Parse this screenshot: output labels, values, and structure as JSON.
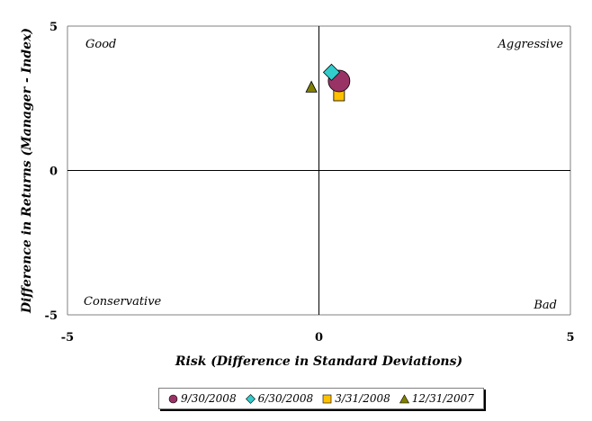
{
  "chart_data": {
    "type": "scatter",
    "title": "",
    "xlabel": "Risk (Difference in Standard Deviations)",
    "ylabel": "Difference in Returns (Manager - Index)",
    "xlim": [
      -5,
      5
    ],
    "ylim": [
      -5,
      5
    ],
    "x_ticks": [
      "-5",
      "0",
      "5"
    ],
    "y_ticks": [
      "5",
      "0",
      "-5"
    ],
    "grid": false,
    "legend_position": "bottom",
    "quadrant_labels": {
      "top_left": "Good",
      "top_right": "Aggressive",
      "bottom_left": "Conservative",
      "bottom_right": "Bad"
    },
    "series": [
      {
        "name": "9/30/2008",
        "marker": "circle",
        "color": "#993366",
        "points": [
          {
            "x": 0.4,
            "y": 3.1
          }
        ]
      },
      {
        "name": "6/30/2008",
        "marker": "diamond",
        "color": "#33CCCC",
        "points": [
          {
            "x": 0.25,
            "y": 3.4
          }
        ]
      },
      {
        "name": "3/31/2008",
        "marker": "square",
        "color": "#FFC000",
        "points": [
          {
            "x": 0.4,
            "y": 2.6
          }
        ]
      },
      {
        "name": "12/31/2007",
        "marker": "triangle",
        "color": "#808000",
        "points": [
          {
            "x": -0.15,
            "y": 2.9
          }
        ]
      }
    ]
  }
}
